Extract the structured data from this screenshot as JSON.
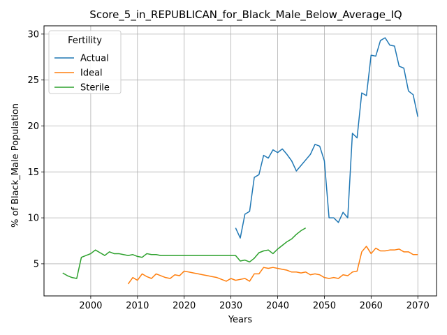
{
  "chart_data": {
    "type": "line",
    "title": "Score_5_in_REPUBLICAN_for_Black_Male_Below_Average_IQ",
    "xlabel": "Years",
    "ylabel": "% of Black_Male Population",
    "xlim": [
      1990,
      2074
    ],
    "ylim": [
      1.5,
      30.9
    ],
    "xticks": [
      2000,
      2010,
      2020,
      2030,
      2040,
      2050,
      2060,
      2070
    ],
    "yticks": [
      5,
      10,
      15,
      20,
      25,
      30
    ],
    "grid": true,
    "legend": {
      "title": "Fertility",
      "placement": "top-left"
    },
    "series": [
      {
        "name": "Actual",
        "color": "#1f77b4",
        "x": [
          2031,
          2032,
          2033,
          2034,
          2035,
          2036,
          2037,
          2038,
          2039,
          2040,
          2041,
          2042,
          2043,
          2044,
          2045,
          2046,
          2047,
          2048,
          2049,
          2050,
          2051,
          2052,
          2053,
          2054,
          2055,
          2056,
          2057,
          2058,
          2059,
          2060,
          2061,
          2062,
          2063,
          2064,
          2065,
          2066,
          2067,
          2068,
          2069,
          2070
        ],
        "values": [
          8.9,
          7.8,
          10.4,
          10.7,
          14.4,
          14.7,
          16.8,
          16.5,
          17.4,
          17.1,
          17.5,
          16.9,
          16.2,
          15.1,
          15.7,
          16.3,
          16.9,
          18.0,
          17.8,
          16.2,
          10.0,
          10.0,
          9.5,
          10.6,
          10.0,
          19.2,
          18.7,
          23.6,
          23.3,
          27.7,
          27.6,
          29.3,
          29.6,
          28.8,
          28.7,
          26.5,
          26.3,
          23.8,
          23.4,
          21.0
        ]
      },
      {
        "name": "Ideal",
        "color": "#ff7f0e",
        "x": [
          2008,
          2009,
          2010,
          2011,
          2012,
          2013,
          2014,
          2015,
          2016,
          2017,
          2018,
          2019,
          2020,
          2021,
          2022,
          2023,
          2024,
          2025,
          2026,
          2027,
          2028,
          2029,
          2030,
          2031,
          2032,
          2033,
          2034,
          2035,
          2036,
          2037,
          2038,
          2039,
          2040,
          2041,
          2042,
          2043,
          2044,
          2045,
          2046,
          2047,
          2048,
          2049,
          2050,
          2051,
          2052,
          2053,
          2054,
          2055,
          2056,
          2057,
          2058,
          2059,
          2060,
          2061,
          2062,
          2063,
          2064,
          2065,
          2066,
          2067,
          2068,
          2069,
          2070
        ],
        "values": [
          2.8,
          3.5,
          3.2,
          3.9,
          3.6,
          3.4,
          3.9,
          3.7,
          3.5,
          3.4,
          3.8,
          3.7,
          4.2,
          4.1,
          4.0,
          3.9,
          3.8,
          3.7,
          3.6,
          3.5,
          3.3,
          3.1,
          3.4,
          3.2,
          3.3,
          3.4,
          3.1,
          3.9,
          3.9,
          4.6,
          4.5,
          4.6,
          4.5,
          4.4,
          4.3,
          4.1,
          4.1,
          4.0,
          4.1,
          3.8,
          3.9,
          3.8,
          3.5,
          3.4,
          3.5,
          3.4,
          3.8,
          3.7,
          4.1,
          4.2,
          6.3,
          6.9,
          6.1,
          6.7,
          6.4,
          6.4,
          6.5,
          6.5,
          6.6,
          6.3,
          6.3,
          6.0,
          6.0
        ]
      },
      {
        "name": "Sterile",
        "color": "#2ca02c",
        "x": [
          1994,
          1995,
          1996,
          1997,
          1998,
          1999,
          2000,
          2001,
          2002,
          2003,
          2004,
          2005,
          2006,
          2007,
          2008,
          2009,
          2010,
          2011,
          2012,
          2013,
          2014,
          2015,
          2016,
          2017,
          2018,
          2019,
          2020,
          2021,
          2022,
          2023,
          2024,
          2025,
          2026,
          2027,
          2028,
          2029,
          2030,
          2031,
          2032,
          2033,
          2034,
          2035,
          2036,
          2037,
          2038,
          2039,
          2040,
          2041,
          2042,
          2043,
          2044,
          2045,
          2046
        ],
        "values": [
          4.0,
          3.7,
          3.5,
          3.4,
          5.7,
          5.9,
          6.1,
          6.5,
          6.2,
          5.9,
          6.3,
          6.1,
          6.1,
          6.0,
          5.9,
          6.0,
          5.8,
          5.7,
          6.1,
          6.0,
          6.0,
          5.9,
          5.9,
          5.9,
          5.9,
          5.9,
          5.9,
          5.9,
          5.9,
          5.9,
          5.9,
          5.9,
          5.9,
          5.9,
          5.9,
          5.9,
          5.9,
          5.9,
          5.3,
          5.4,
          5.2,
          5.6,
          6.2,
          6.4,
          6.5,
          6.1,
          6.6,
          7.0,
          7.4,
          7.7,
          8.2,
          8.6,
          8.9
        ]
      }
    ]
  }
}
